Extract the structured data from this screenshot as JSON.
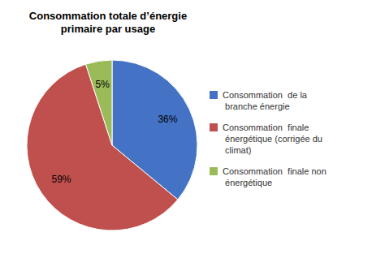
{
  "chart_data": {
    "type": "pie",
    "title": "Consommation totale d’énergie\nprimaire par usage",
    "categories": [
      "Consommation  de la\n branche énergie",
      "Consommation  finale\n énergétique (corrigée du\n climat)",
      "Consommation  finale non\n énergétique"
    ],
    "values": [
      36,
      59,
      5
    ],
    "value_labels": [
      "36%",
      "59%",
      "5%"
    ],
    "colors": [
      "#4472C4",
      "#C0504D",
      "#9BBB59"
    ],
    "data_labels": true,
    "legend": "right"
  }
}
